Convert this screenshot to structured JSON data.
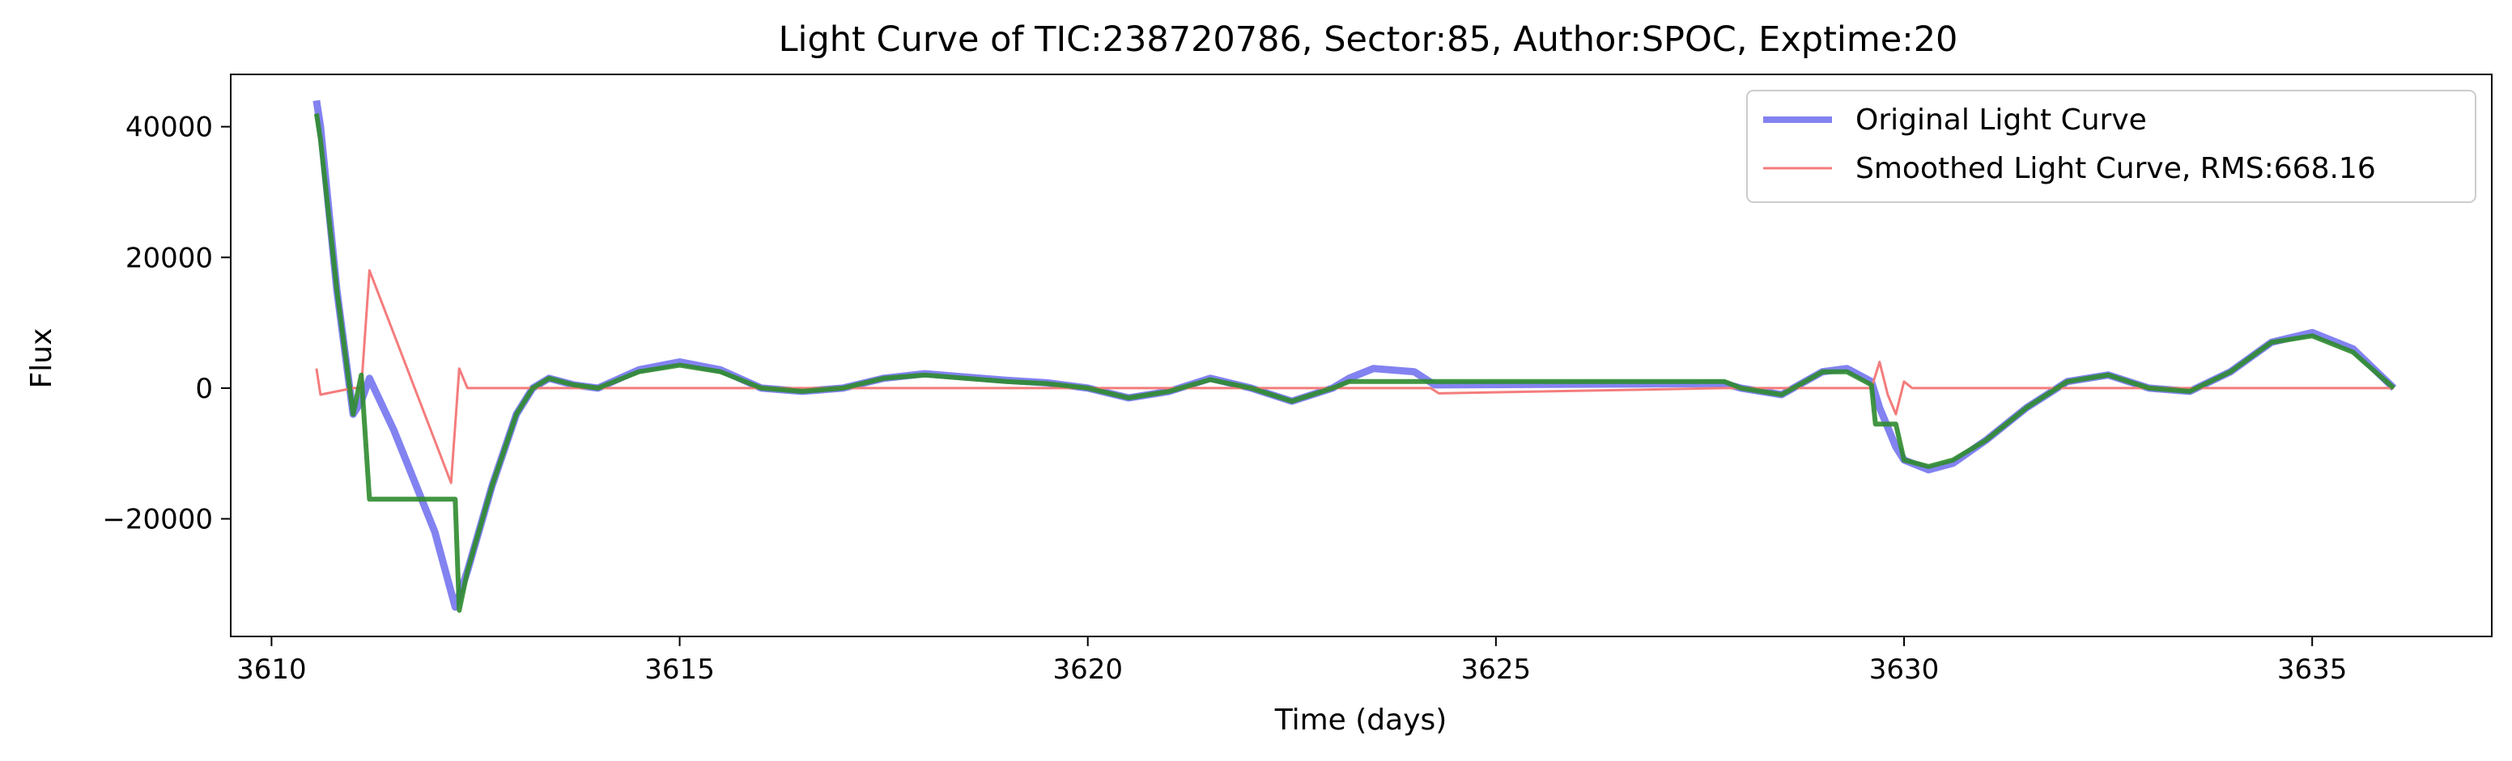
{
  "chart_data": {
    "type": "line",
    "title": "Light Curve of TIC:238720786, Sector:85, Author:SPOC, Exptime:20",
    "xlabel": "Time (days)",
    "ylabel": "Flux",
    "xlim": [
      3609.5,
      3637.2
    ],
    "ylim": [
      -38000,
      48000
    ],
    "x_ticks": [
      3610,
      3615,
      3620,
      3625,
      3630,
      3635
    ],
    "x_tick_labels": [
      "3610",
      "3615",
      "3620",
      "3625",
      "3630",
      "3635"
    ],
    "y_ticks": [
      -20000,
      0,
      20000,
      40000
    ],
    "y_tick_labels": [
      "−20000",
      "0",
      "20000",
      "40000"
    ],
    "grid": false,
    "legend_position": "top-right",
    "series": [
      {
        "name": "Original Light Curve",
        "color": "#7b7bf0",
        "x": [
          3610.55,
          3610.6,
          3610.8,
          3611.0,
          3611.1,
          3611.2,
          3611.5,
          3612.0,
          3612.25,
          3612.4,
          3612.7,
          3613.0,
          3613.2,
          3613.4,
          3613.7,
          3614.0,
          3614.5,
          3615.0,
          3615.5,
          3616.0,
          3616.5,
          3617.0,
          3617.5,
          3618.0,
          3618.5,
          3619.0,
          3619.5,
          3620.0,
          3620.5,
          3621.0,
          3621.5,
          3622.0,
          3622.5,
          3623.0,
          3623.2,
          3623.5,
          3624.0,
          3624.25,
          3627.8,
          3628.0,
          3628.5,
          3629.0,
          3629.3,
          3629.6,
          3629.7,
          3629.9,
          3630.0,
          3630.3,
          3630.6,
          3631.0,
          3631.5,
          3632.0,
          3632.5,
          3633.0,
          3633.5,
          3634.0,
          3634.5,
          3635.0,
          3635.5,
          3636.0
        ],
        "y": [
          44000,
          40000,
          15000,
          -4000,
          -2000,
          1500,
          -6500,
          -22000,
          -33500,
          -28000,
          -15000,
          -4000,
          0,
          1500,
          500,
          0,
          2800,
          4000,
          2800,
          0,
          -500,
          0,
          1500,
          2200,
          1700,
          1200,
          800,
          0,
          -1500,
          -500,
          1500,
          0,
          -2000,
          0,
          1500,
          3000,
          2500,
          500,
          700,
          0,
          -1000,
          2500,
          3000,
          1000,
          -3000,
          -9000,
          -11000,
          -12500,
          -11500,
          -8000,
          -3000,
          1000,
          2000,
          0,
          -500,
          2500,
          7000,
          8500,
          6000,
          0
        ]
      },
      {
        "name": "Smoothed Light Curve, RMS:668.16",
        "color": "#f47c7c",
        "x": [
          3610.55,
          3610.6,
          3611.0,
          3611.1,
          3611.2,
          3612.2,
          3612.3,
          3612.4,
          3613.0,
          3614.0,
          3615.0,
          3616.0,
          3617.0,
          3618.0,
          3619.0,
          3620.0,
          3621.0,
          3622.0,
          3623.0,
          3623.3,
          3623.5,
          3624.2,
          3624.3,
          3627.8,
          3628.0,
          3629.0,
          3629.6,
          3629.7,
          3629.8,
          3629.9,
          3630.0,
          3630.1,
          3631.0,
          3632.0,
          3633.0,
          3634.0,
          3635.0,
          3636.0
        ],
        "y": [
          3000,
          -1000,
          0,
          0,
          18000,
          -14500,
          3000,
          0,
          0,
          0,
          0,
          0,
          0,
          0,
          0,
          0,
          0,
          0,
          0,
          0,
          0,
          0,
          -800,
          0,
          0,
          0,
          0,
          4000,
          -1000,
          -4000,
          1000,
          0,
          0,
          0,
          0,
          0,
          0,
          0
        ]
      },
      {
        "name": "",
        "color": "#2e8b2e",
        "x": [
          3610.55,
          3610.6,
          3610.8,
          3611.0,
          3611.1,
          3611.2,
          3612.25,
          3612.3,
          3612.4,
          3612.7,
          3613.0,
          3613.2,
          3613.4,
          3613.7,
          3614.0,
          3614.5,
          3615.0,
          3615.5,
          3616.0,
          3616.5,
          3617.0,
          3617.5,
          3618.0,
          3618.5,
          3619.0,
          3619.5,
          3620.0,
          3620.5,
          3621.0,
          3621.5,
          3622.0,
          3622.5,
          3623.0,
          3623.2,
          3623.3,
          3627.8,
          3628.0,
          3628.5,
          3629.0,
          3629.3,
          3629.6,
          3629.65,
          3629.9,
          3630.0,
          3630.3,
          3630.6,
          3631.0,
          3631.5,
          3632.0,
          3632.5,
          3633.0,
          3633.5,
          3634.0,
          3634.5,
          3635.0,
          3635.5,
          3636.0
        ],
        "y": [
          42000,
          38000,
          15000,
          -4000,
          2000,
          -17000,
          -17000,
          -34000,
          -28000,
          -15000,
          -4000,
          0,
          1500,
          500,
          0,
          2500,
          3500,
          2500,
          0,
          -500,
          0,
          1500,
          2000,
          1500,
          1000,
          700,
          0,
          -1500,
          -500,
          1300,
          0,
          -2000,
          0,
          1000,
          1000,
          1000,
          0,
          -1000,
          2500,
          2500,
          500,
          -5500,
          -5500,
          -11000,
          -12000,
          -11000,
          -8000,
          -3000,
          1000,
          2000,
          0,
          -500,
          2500,
          7000,
          8000,
          5500,
          0
        ]
      }
    ]
  }
}
